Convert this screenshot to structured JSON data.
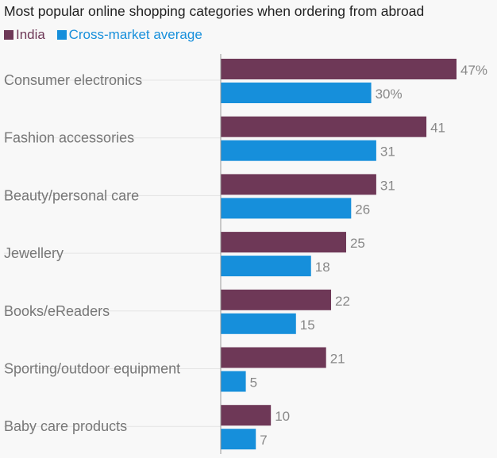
{
  "title": "Most popular online shopping categories when ordering from abroad",
  "legend": [
    {
      "label": "India",
      "color": "#6e3857"
    },
    {
      "label": "Cross-market average",
      "color": "#168fdb"
    }
  ],
  "chart_data": {
    "type": "bar",
    "orientation": "horizontal",
    "title": "Most popular online shopping categories when ordering from abroad",
    "categories": [
      "Consumer electronics",
      "Fashion accessories",
      "Beauty/personal care",
      "Jewellery",
      "Books/eReaders",
      "Sporting/outdoor equipment",
      "Baby care products"
    ],
    "series": [
      {
        "name": "India",
        "color": "#6e3857",
        "values": [
          47,
          41,
          31,
          25,
          22,
          21,
          10
        ],
        "labels": [
          "47%",
          "41",
          "31",
          "25",
          "22",
          "21",
          "10"
        ]
      },
      {
        "name": "Cross-market average",
        "color": "#168fdb",
        "values": [
          30,
          31,
          26,
          18,
          15,
          5,
          7
        ],
        "labels": [
          "30%",
          "31",
          "26",
          "18",
          "15",
          "5",
          "7"
        ]
      }
    ],
    "xlim": [
      0,
      50
    ],
    "legend_position": "top-left",
    "grid": false
  }
}
